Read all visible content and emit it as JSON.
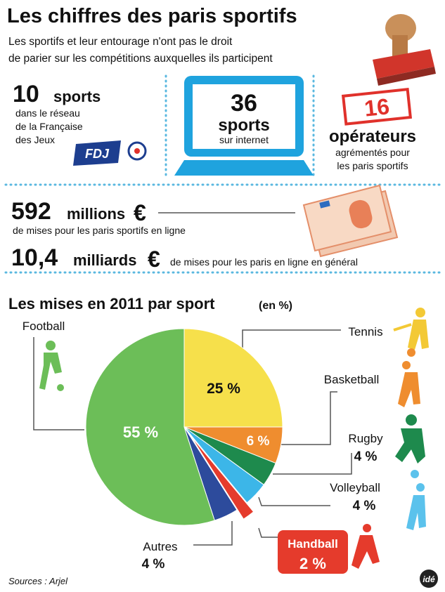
{
  "header": {
    "title": "Les chiffres des paris sportifs",
    "subtitle": [
      "Les sportifs et leur entourage n'ont pas le droit",
      "de parier sur les compétitions auxquelles ils participent"
    ]
  },
  "stats": {
    "fdj": {
      "number": "10",
      "unit": "sports",
      "lines": [
        "dans le réseau",
        "de la Française",
        "des Jeux"
      ],
      "logo": "FDJ"
    },
    "internet": {
      "number": "36",
      "unit": "sports",
      "caption": "sur internet"
    },
    "operators": {
      "number": "16",
      "unit": "opérateurs",
      "lines": [
        "agrémentés pour",
        "les paris sportifs"
      ]
    },
    "online": {
      "number": "592",
      "unit": "millions",
      "currency": "€",
      "caption": "de mises pour les paris sportifs en ligne"
    },
    "total": {
      "number": "10,4",
      "unit": "milliards",
      "currency": "€",
      "caption": "de mises pour les paris en ligne en général"
    }
  },
  "chart_data": {
    "type": "pie",
    "title": "Les mises en 2011 par sport",
    "subtitle": "(en %)",
    "categories": [
      "Tennis",
      "Basketball",
      "Rugby",
      "Volleyball",
      "Handball",
      "Autres",
      "Football"
    ],
    "values": [
      25,
      6,
      4,
      4,
      2,
      4,
      55
    ],
    "value_labels": [
      "25 %",
      "6 %",
      "4 %",
      "4 %",
      "2 %",
      "4 %",
      "55 %"
    ],
    "colors": [
      "#f6e04b",
      "#ef8d2f",
      "#1e8a4d",
      "#3cb6e8",
      "#e53b2c",
      "#2d4b9c",
      "#6cbe58"
    ],
    "exploded": "Handball"
  },
  "footer": {
    "source": "Sources : Arjel",
    "logo": "idé"
  }
}
